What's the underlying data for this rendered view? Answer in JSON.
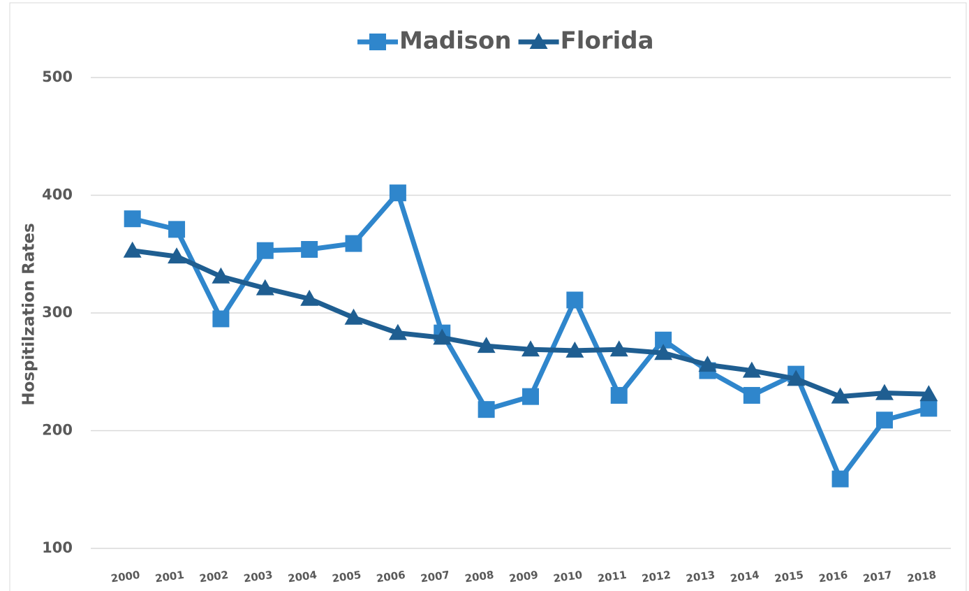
{
  "chart_data": {
    "type": "line",
    "y_label": "Hospitilzation Rates",
    "categories": [
      "2000",
      "2001",
      "2002",
      "2003",
      "2004",
      "2005",
      "2006",
      "2007",
      "2008",
      "2009",
      "2010",
      "2011",
      "2012",
      "2013",
      "2014",
      "2015",
      "2016",
      "2017",
      "2018"
    ],
    "series": [
      {
        "name": "Madison",
        "color": "#2f86cc",
        "marker": "square",
        "values": [
          380,
          371,
          295,
          353,
          354,
          359,
          402,
          283,
          218,
          229,
          311,
          230,
          277,
          251,
          230,
          248,
          159,
          209,
          219
        ]
      },
      {
        "name": "Florida",
        "color": "#1f5e91",
        "marker": "triangle",
        "values": [
          353,
          348,
          331,
          321,
          312,
          296,
          283,
          279,
          272,
          269,
          268,
          269,
          266,
          256,
          251,
          244,
          229,
          232,
          231
        ]
      }
    ],
    "ylim": [
      100,
      500
    ],
    "yticks": [
      100,
      200,
      300,
      400,
      500
    ],
    "grid": true,
    "legend": "top"
  }
}
